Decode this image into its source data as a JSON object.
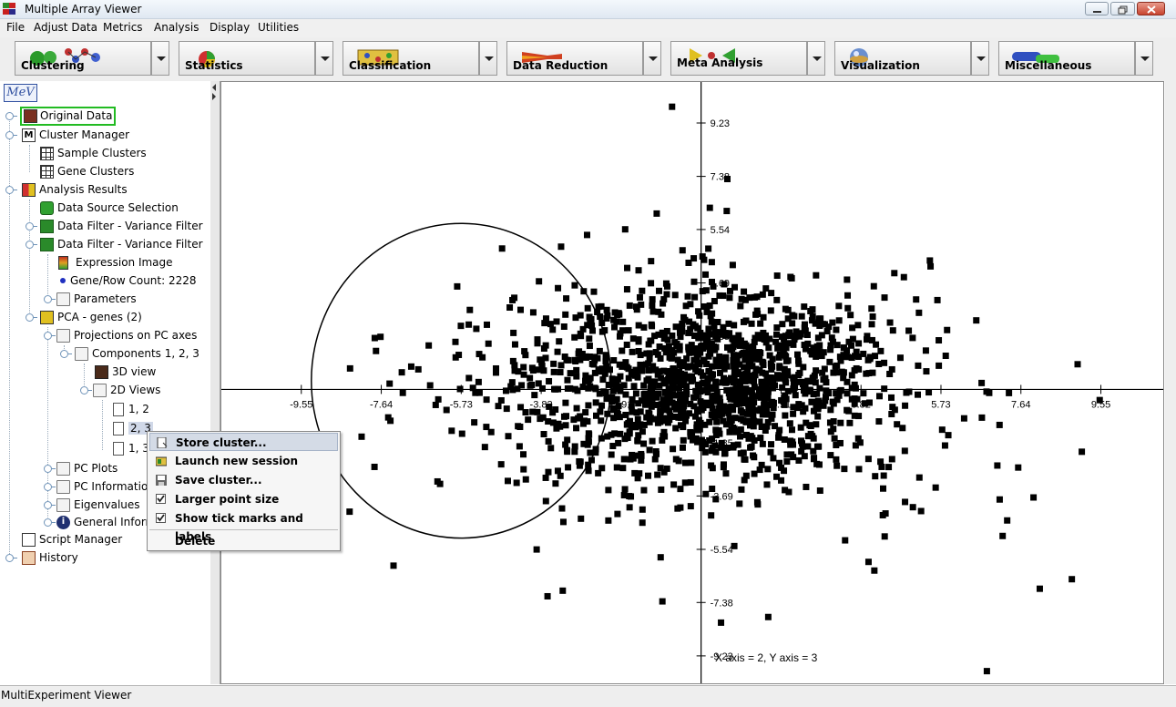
{
  "window": {
    "title": "Multiple Array Viewer",
    "controls": [
      "minimize-icon",
      "maximize-icon",
      "close-icon"
    ]
  },
  "menu": [
    "File",
    "Adjust Data",
    "Metrics",
    "Analysis",
    "Display",
    "Utilities"
  ],
  "toolbar": [
    {
      "label": "Clustering"
    },
    {
      "label": "Statistics"
    },
    {
      "label": "Classification"
    },
    {
      "label": "Data Reduction"
    },
    {
      "label": "Meta Analysis"
    },
    {
      "label": "Visualization"
    },
    {
      "label": "Miscellaneous"
    }
  ],
  "logo": "MeV",
  "tree": [
    {
      "label": "Original Data",
      "selected": true
    },
    {
      "label": "Cluster Manager"
    },
    {
      "label": "Sample Clusters"
    },
    {
      "label": "Gene Clusters"
    },
    {
      "label": "Analysis Results"
    },
    {
      "label": "Data Source Selection"
    },
    {
      "label": "Data Filter - Variance Filter"
    },
    {
      "label": "Data Filter - Variance Filter"
    },
    {
      "label": "Expression Image"
    },
    {
      "label": "Gene/Row Count: 2228"
    },
    {
      "label": "Parameters"
    },
    {
      "label": "PCA - genes (2)"
    },
    {
      "label": "Projections on PC axes"
    },
    {
      "label": "Components 1, 2, 3"
    },
    {
      "label": "3D view"
    },
    {
      "label": "2D Views"
    },
    {
      "label": "1, 2"
    },
    {
      "label": "2, 3"
    },
    {
      "label": "1, 3"
    },
    {
      "label": "PC Plots"
    },
    {
      "label": "PC Information"
    },
    {
      "label": "Eigenvalues"
    },
    {
      "label": "General Information"
    },
    {
      "label": "Script Manager"
    },
    {
      "label": "History"
    }
  ],
  "context_menu": [
    {
      "label": "Store cluster...",
      "highlighted": true
    },
    {
      "label": "Launch new session"
    },
    {
      "label": "Save cluster..."
    },
    {
      "label": "Larger point size",
      "checked": true
    },
    {
      "label": "Show tick marks and labels",
      "checked": true
    },
    {
      "label": "Delete"
    }
  ],
  "chart_data": {
    "type": "scatter",
    "x_ticks": [
      "-9.55",
      "-7.64",
      "-5.73",
      "-3.82",
      "-1.91",
      "1.91",
      "3.82",
      "5.73",
      "7.64",
      "9.55"
    ],
    "y_ticks": [
      "9.23",
      "7.38",
      "5.54",
      "3.69",
      "1.85",
      "-1.85",
      "-3.69",
      "-5.54",
      "-7.38",
      "-9.23"
    ],
    "xlim": [
      -11.46,
      11.04
    ],
    "ylim": [
      -10.18,
      10.65
    ],
    "caption": "X axis = 2, Y axis = 3",
    "selection_circle": {
      "cx": -5.73,
      "cy": 0.3,
      "rx": 3.58,
      "ry": 5.45
    },
    "point_count": 2228
  },
  "status": "MultiExperiment Viewer"
}
